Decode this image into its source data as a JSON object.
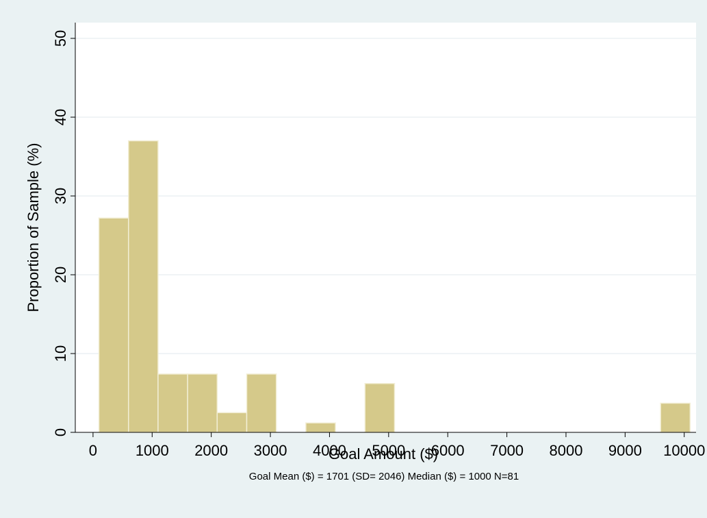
{
  "chart_data": {
    "type": "bar",
    "title": "",
    "xlabel": "Goal Amount ($)",
    "ylabel": "Proportion of Sample (%)",
    "note": "Goal Mean ($) = 1701 (SD= 2046) Median ($) = 1000 N=81",
    "xlim": [
      -300,
      10200
    ],
    "ylim": [
      0,
      52
    ],
    "xticks": [
      0,
      1000,
      2000,
      3000,
      4000,
      5000,
      6000,
      7000,
      8000,
      9000,
      10000
    ],
    "yticks": [
      0,
      10,
      20,
      30,
      40,
      50
    ],
    "grid": true,
    "bin_width": 500,
    "bins": [
      {
        "x0": 100,
        "x1": 600,
        "value": 27.2
      },
      {
        "x0": 600,
        "x1": 1100,
        "value": 37.0
      },
      {
        "x0": 1100,
        "x1": 1600,
        "value": 7.4
      },
      {
        "x0": 1600,
        "x1": 2100,
        "value": 7.4
      },
      {
        "x0": 2100,
        "x1": 2600,
        "value": 2.5
      },
      {
        "x0": 2600,
        "x1": 3100,
        "value": 7.4
      },
      {
        "x0": 3600,
        "x1": 4100,
        "value": 1.2
      },
      {
        "x0": 4600,
        "x1": 5100,
        "value": 6.2
      },
      {
        "x0": 9600,
        "x1": 10100,
        "value": 3.7
      }
    ],
    "colors": {
      "background": "#eaf2f3",
      "plot_background": "#ffffff",
      "bar_fill": "#d5c98a",
      "bar_edge": "#f2eed5",
      "grid": "#e6eef0"
    }
  }
}
